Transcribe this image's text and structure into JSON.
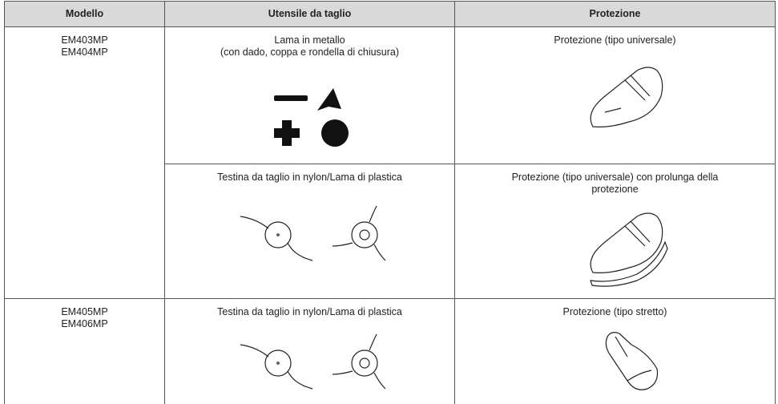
{
  "table": {
    "header": [
      "Modello",
      "Utensile da taglio",
      "Protezione"
    ],
    "rows": [
      {
        "model": [
          "EM403MP",
          "EM404MP"
        ],
        "tool": [
          "Lama in metallo",
          "(con dado, coppa e rondella di chiusura)"
        ],
        "guard": "Protezione (tipo universale)"
      },
      {
        "tool": [
          "Testina da taglio in nylon/Lama di plastica"
        ],
        "guard": "Protezione (tipo universale) con prolunga della protezione"
      },
      {
        "model": [
          "EM405MP",
          "EM406MP"
        ],
        "tool": [
          "Testina da taglio in nylon/Lama di plastica"
        ],
        "guard": "Protezione (tipo stretto)"
      }
    ]
  }
}
